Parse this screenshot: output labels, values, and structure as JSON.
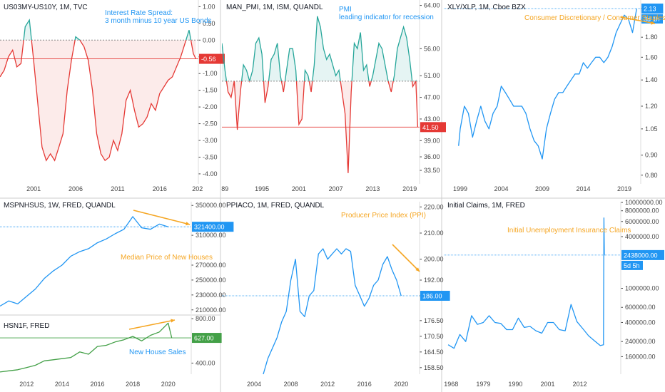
{
  "colors": {
    "blue": "#2196f3",
    "red": "#e53935",
    "teal": "#26a69a",
    "green": "#43a047",
    "orange": "#f5a623",
    "axis": "#444444",
    "grid_line": "#cccccc",
    "white": "#ffffff"
  },
  "chart_data": [
    {
      "id": "us03my",
      "type": "line",
      "title": "US03MY-US10Y, 1M, TVC",
      "annotation": "Interest Rate Spread:\n3 month minus 10 year US Bonds",
      "xlim": [
        1997,
        2020.6
      ],
      "ylim": [
        -4.3,
        1.2
      ],
      "x_ticks": [
        "2001",
        "2006",
        "2011",
        "2016",
        "202"
      ],
      "x_tick_values": [
        2001,
        2006,
        2011,
        2016,
        2020.5
      ],
      "y_ticks": [
        "1.00",
        "0.50",
        "0.00",
        "-0.50",
        "-1.00",
        "-1.50",
        "-2.00",
        "-2.50",
        "-3.00",
        "-3.50",
        "-4.00"
      ],
      "y_tick_values": [
        1,
        0.5,
        0,
        -0.5,
        -1,
        -1.5,
        -2,
        -2.5,
        -3,
        -3.5,
        -4
      ],
      "last_label": "-0.56",
      "last_value": -0.56,
      "threshold": 0,
      "x": [
        1997,
        1997.5,
        1998,
        1998.5,
        1999,
        1999.5,
        2000,
        2000.5,
        2001,
        2001.5,
        2002,
        2002.5,
        2003,
        2003.5,
        2004,
        2004.5,
        2005,
        2005.5,
        2006,
        2006.5,
        2007,
        2007.5,
        2008,
        2008.5,
        2009,
        2009.5,
        2010,
        2010.5,
        2011,
        2011.5,
        2012,
        2012.5,
        2013,
        2013.5,
        2014,
        2014.5,
        2015,
        2015.5,
        2016,
        2016.5,
        2017,
        2017.5,
        2018,
        2018.5,
        2019,
        2019.5,
        2020,
        2020.3
      ],
      "values": [
        -1.1,
        -0.9,
        -0.5,
        -0.3,
        -0.8,
        -0.7,
        0.4,
        0.6,
        -0.6,
        -1.9,
        -3.2,
        -3.6,
        -3.4,
        -3.6,
        -3.2,
        -2.8,
        -1.5,
        -0.6,
        0.1,
        0.0,
        -0.2,
        -0.6,
        -1.5,
        -2.8,
        -3.4,
        -3.6,
        -3.5,
        -3.0,
        -3.3,
        -2.8,
        -1.8,
        -1.5,
        -2.1,
        -2.6,
        -2.5,
        -2.3,
        -1.9,
        -2.1,
        -1.6,
        -1.4,
        -1.2,
        -1.1,
        -0.8,
        -0.5,
        -0.1,
        0.3,
        -0.4,
        -0.56
      ]
    },
    {
      "id": "man_pmi",
      "type": "line",
      "title": "MAN_PMI, 1M, ISM, QUANDL",
      "annotation": "PMI\nleading indicator for recession",
      "xlim": [
        1988.5,
        2020.6
      ],
      "ylim": [
        31,
        65
      ],
      "x_ticks": [
        "89",
        "1995",
        "2001",
        "2007",
        "2013",
        "2019"
      ],
      "x_tick_values": [
        1989,
        1995,
        2001,
        2007,
        2013,
        2019
      ],
      "y_ticks": [
        "64.00",
        "56.00",
        "51.00",
        "47.00",
        "43.00",
        "39.00",
        "36.00",
        "33.50"
      ],
      "y_tick_values": [
        64,
        56,
        51,
        47,
        43,
        39,
        36,
        33.5
      ],
      "last_label": "41.50",
      "last_value": 41.5,
      "threshold": 50,
      "x": [
        1988.5,
        1989,
        1989.5,
        1990,
        1990.5,
        1991,
        1991.5,
        1992,
        1992.5,
        1993,
        1993.5,
        1994,
        1994.5,
        1995,
        1995.5,
        1996,
        1996.5,
        1997,
        1997.5,
        1998,
        1998.5,
        1999,
        1999.5,
        2000,
        2000.5,
        2001,
        2001.5,
        2002,
        2002.5,
        2003,
        2003.5,
        2004,
        2004.5,
        2005,
        2005.5,
        2006,
        2006.5,
        2007,
        2007.5,
        2008,
        2008.5,
        2009,
        2009.5,
        2010,
        2010.5,
        2011,
        2011.5,
        2012,
        2012.5,
        2013,
        2013.5,
        2014,
        2014.5,
        2015,
        2015.5,
        2016,
        2016.5,
        2017,
        2017.5,
        2018,
        2018.5,
        2019,
        2019.5,
        2020,
        2020.3
      ],
      "values": [
        57,
        52,
        48,
        47,
        50,
        41,
        48,
        53,
        52,
        50,
        52,
        57,
        58,
        55,
        46,
        49,
        54,
        55,
        57,
        51,
        48,
        52,
        56,
        56,
        52,
        42,
        43,
        52,
        51,
        48,
        53,
        62,
        60,
        56,
        54,
        55,
        53,
        51,
        52,
        48,
        44,
        33,
        48,
        57,
        56,
        59,
        52,
        53,
        49,
        51,
        54,
        57,
        56,
        53,
        50,
        48,
        51,
        56,
        58,
        60,
        58,
        54,
        49,
        50,
        41.5
      ]
    },
    {
      "id": "xly_xlp",
      "type": "line",
      "title": "XLY/XLP, 1M, Cboe BZX",
      "annotation": "Consumer Discretionary / Consumer Staples",
      "xlim": [
        1997,
        2021
      ],
      "ylim": [
        0.76,
        2.24
      ],
      "x_ticks": [
        "1999",
        "2004",
        "2009",
        "2014",
        "2019"
      ],
      "x_tick_values": [
        1999,
        2004,
        2009,
        2014,
        2019
      ],
      "y_ticks": [
        "2.13",
        "2.00",
        "1.80",
        "1.60",
        "1.40",
        "1.20",
        "1.05",
        "0.90",
        "0.80"
      ],
      "y_tick_values": [
        2.13,
        2.0,
        1.8,
        1.6,
        1.4,
        1.2,
        1.05,
        0.9,
        0.8
      ],
      "last_label": "2.13",
      "last_value": 2.13,
      "countdown": "3d 1h",
      "x": [
        1998.8,
        1999,
        1999.5,
        2000,
        2000.5,
        2001,
        2001.5,
        2002,
        2002.5,
        2003,
        2003.5,
        2004,
        2004.5,
        2005,
        2005.5,
        2006,
        2006.5,
        2007,
        2007.5,
        2008,
        2008.5,
        2009,
        2009.5,
        2010,
        2010.5,
        2011,
        2011.5,
        2012,
        2012.5,
        2013,
        2013.5,
        2014,
        2014.5,
        2015,
        2015.5,
        2016,
        2016.5,
        2017,
        2017.5,
        2018,
        2018.5,
        2019,
        2019.5,
        2020,
        2020.5
      ],
      "values": [
        0.95,
        1.05,
        1.2,
        1.15,
        1.0,
        1.1,
        1.2,
        1.1,
        1.05,
        1.15,
        1.2,
        1.35,
        1.3,
        1.25,
        1.2,
        1.2,
        1.2,
        1.15,
        1.05,
        0.98,
        0.95,
        0.88,
        1.05,
        1.15,
        1.25,
        1.3,
        1.3,
        1.35,
        1.4,
        1.45,
        1.45,
        1.55,
        1.5,
        1.55,
        1.6,
        1.6,
        1.55,
        1.6,
        1.7,
        1.85,
        1.95,
        2.05,
        2.0,
        1.85,
        2.13
      ]
    },
    {
      "id": "mspnhsus",
      "type": "line",
      "title": "MSPNHSUS, 1W, FRED, QUANDL",
      "annotation": "Median Price of New Houses",
      "xlim": [
        2010.5,
        2021.3
      ],
      "ylim": [
        205000,
        355000
      ],
      "y_ticks": [
        "350000.00",
        "310000.00",
        "270000.00",
        "250000.00",
        "230000.00",
        "210000.00"
      ],
      "y_tick_values": [
        350000,
        310000,
        270000,
        250000,
        230000,
        210000
      ],
      "last_label": "321400.00",
      "last_value": 321400,
      "x": [
        2010.5,
        2011,
        2011.5,
        2012,
        2012.5,
        2013,
        2013.5,
        2014,
        2014.5,
        2015,
        2015.5,
        2016,
        2016.5,
        2017,
        2017.5,
        2018,
        2018.5,
        2019,
        2019.5,
        2020
      ],
      "values": [
        215000,
        222000,
        218000,
        228000,
        238000,
        252000,
        262000,
        270000,
        282000,
        288000,
        292000,
        300000,
        305000,
        312000,
        318000,
        335000,
        320000,
        318000,
        325000,
        321400
      ]
    },
    {
      "id": "hsn1f",
      "type": "line",
      "title": "HSN1F, FRED",
      "annotation": "New House Sales",
      "xlim": [
        2010.5,
        2021.3
      ],
      "ylim": [
        300,
        820
      ],
      "x_ticks": [
        "2012",
        "2014",
        "2016",
        "2018",
        "2020"
      ],
      "x_tick_values": [
        2012,
        2014,
        2016,
        2018,
        2020
      ],
      "y_ticks": [
        "800.00",
        "400.00"
      ],
      "y_tick_values": [
        800,
        400
      ],
      "last_label": "627.00",
      "last_value": 627,
      "x": [
        2010.5,
        2011,
        2011.5,
        2012,
        2012.5,
        2013,
        2013.5,
        2014,
        2014.5,
        2015,
        2015.5,
        2016,
        2016.5,
        2017,
        2017.5,
        2018,
        2018.5,
        2019,
        2019.5,
        2020,
        2020.2
      ],
      "values": [
        320,
        330,
        340,
        360,
        380,
        420,
        430,
        440,
        450,
        500,
        480,
        550,
        560,
        590,
        610,
        640,
        600,
        650,
        680,
        760,
        627
      ]
    },
    {
      "id": "ppiaco",
      "type": "line",
      "title": "PPIACO, 1M, FRED, QUANDL",
      "annotation": "Producer Price Index (PPI)",
      "xlim": [
        2000.5,
        2022
      ],
      "ylim": [
        156,
        222
      ],
      "x_ticks": [
        "2004",
        "2008",
        "2012",
        "2016",
        "2020"
      ],
      "x_tick_values": [
        2004,
        2008,
        2012,
        2016,
        2020
      ],
      "y_ticks": [
        "220.00",
        "210.00",
        "200.00",
        "192.00",
        "186.00",
        "176.50",
        "170.50",
        "164.50",
        "158.50"
      ],
      "y_tick_values": [
        220,
        210,
        200,
        192,
        186,
        176.5,
        170.5,
        164.5,
        158.5
      ],
      "last_label": "186.00",
      "last_value": 186,
      "x": [
        2005,
        2005.5,
        2006,
        2006.5,
        2007,
        2007.5,
        2008,
        2008.5,
        2009,
        2009.5,
        2010,
        2010.5,
        2011,
        2011.5,
        2012,
        2012.5,
        2013,
        2013.5,
        2014,
        2014.5,
        2015,
        2015.5,
        2016,
        2016.5,
        2017,
        2017.5,
        2018,
        2018.5,
        2019,
        2019.5,
        2020
      ],
      "values": [
        156,
        162,
        166,
        170,
        176,
        180,
        192,
        200,
        180,
        178,
        186,
        188,
        202,
        204,
        200,
        202,
        204,
        202,
        204,
        203,
        190,
        186,
        182,
        185,
        190,
        192,
        198,
        201,
        196,
        192,
        186
      ]
    },
    {
      "id": "initial_claims",
      "type": "line",
      "title": "Initial Claims, 1M, FRED",
      "annotation": "Initial Unemployment Insurance Claims",
      "xlim": [
        1965.5,
        2026
      ],
      "ylim": [
        100000,
        10200000
      ],
      "x_ticks": [
        "1968",
        "1979",
        "1990",
        "2001",
        "2012"
      ],
      "x_tick_values": [
        1968,
        1979,
        1990,
        2001,
        2012
      ],
      "y_ticks": [
        "10000000.00",
        "8000000.00",
        "6000000.00",
        "4000000.00",
        "1000000.00",
        "600000.00",
        "400000.00",
        "240000.00",
        "160000.00"
      ],
      "y_tick_values": [
        10000000,
        8000000,
        6000000,
        4000000,
        1000000,
        600000,
        400000,
        240000,
        160000
      ],
      "last_label": "2438000.00",
      "last_value": 2438000,
      "countdown": "5d 5h",
      "x": [
        1967,
        1969,
        1971,
        1973,
        1975,
        1977,
        1979,
        1981,
        1983,
        1985,
        1987,
        1989,
        1991,
        1993,
        1995,
        1997,
        1999,
        2001,
        2003,
        2005,
        2007,
        2009,
        2011,
        2013,
        2015,
        2017,
        2019,
        2020.1,
        2020.25,
        2020.4,
        2020.5
      ],
      "values": [
        220000,
        200000,
        290000,
        240000,
        480000,
        380000,
        400000,
        480000,
        400000,
        390000,
        330000,
        330000,
        450000,
        350000,
        360000,
        320000,
        300000,
        400000,
        400000,
        330000,
        320000,
        650000,
        410000,
        340000,
        280000,
        245000,
        215000,
        220000,
        6600000,
        2438000,
        2438000
      ]
    }
  ]
}
